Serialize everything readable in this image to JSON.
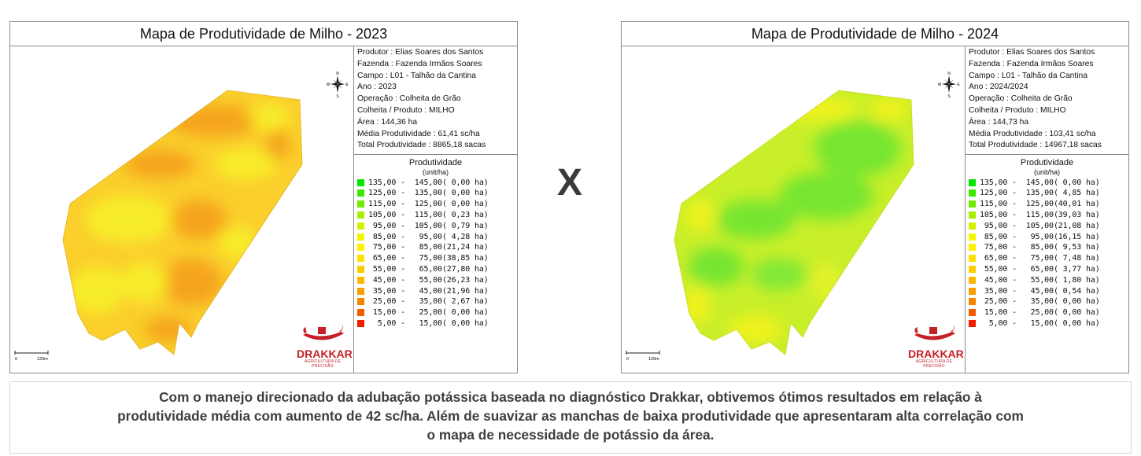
{
  "maps": [
    {
      "title": "Mapa de Produtividade de Milho - 2023",
      "info": [
        "Produtor : Elias Soares dos Santos",
        "Fazenda  : Fazenda Irmãos Soares",
        "Campo  : L01 - Talhão da Cantina",
        "Ano : 2023",
        "Operação  : Colheita de Grão",
        "Colheita / Produto : MILHO",
        "Área : 144,36 ha",
        "Média Produtividade : 61,41 sc/ha",
        "Total Produtividade : 8865,18 sacas"
      ],
      "legend_title": "Produtividade",
      "legend_unit": "(unit/ha)",
      "legend": [
        {
          "range": "135,00 -  145,00",
          "area": "( 0,00 ha)",
          "color": "#00e600"
        },
        {
          "range": "125,00 -  135,00",
          "area": "( 0,00 ha)",
          "color": "#3de800"
        },
        {
          "range": "115,00 -  125,00",
          "area": "( 0,00 ha)",
          "color": "#73eb00"
        },
        {
          "range": "105,00 -  115,00",
          "area": "( 0,23 ha)",
          "color": "#a8ee00"
        },
        {
          "range": " 95,00 -  105,00",
          "area": "( 0,79 ha)",
          "color": "#d4f100"
        },
        {
          "range": " 85,00 -   95,00",
          "area": "( 4,28 ha)",
          "color": "#f2f500"
        },
        {
          "range": " 75,00 -   85,00",
          "area": "(21,24 ha)",
          "color": "#fff200"
        },
        {
          "range": " 65,00 -   75,00",
          "area": "(38,85 ha)",
          "color": "#fde000"
        },
        {
          "range": " 55,00 -   65,00",
          "area": "(27,80 ha)",
          "color": "#fccd00"
        },
        {
          "range": " 45,00 -   55,00",
          "area": "(26,23 ha)",
          "color": "#fbb800"
        },
        {
          "range": " 35,00 -   45,00",
          "area": "(21,96 ha)",
          "color": "#f9a000"
        },
        {
          "range": " 25,00 -   35,00",
          "area": "( 2,67 ha)",
          "color": "#f78500"
        },
        {
          "range": " 15,00 -   25,00",
          "area": "( 0,00 ha)",
          "color": "#f45a00"
        },
        {
          "range": "  5,00 -   15,00",
          "area": "( 0,00 ha)",
          "color": "#f01c00"
        }
      ],
      "scale_start": "0",
      "scale_end": "120m",
      "compass": {
        "n": "N",
        "s": "S",
        "e": "E",
        "w": "W"
      },
      "logo": {
        "name": "DRAKKAR",
        "sub": "AGRICULTURA DE PRECISÃO"
      }
    },
    {
      "title": "Mapa de Produtividade de Milho - 2024",
      "info": [
        "Produtor : Elias Soares dos Santos",
        "Fazenda  : Fazenda Irmãos Soares",
        "Campo  : L01 - Talhão da Cantina",
        "Ano : 2024/2024",
        "Operação  : Colheita de Grão",
        "Colheita / Produto : MILHO",
        "Área : 144,73 ha",
        "Média Produtividade : 103,41 sc/ha",
        "Total Produtividade : 14967,18 sacas"
      ],
      "legend_title": "Produtividade",
      "legend_unit": "(unit/ha)",
      "legend": [
        {
          "range": "135,00 -  145,00",
          "area": "( 0,00 ha)",
          "color": "#00e600"
        },
        {
          "range": "125,00 -  135,00",
          "area": "( 4,85 ha)",
          "color": "#3de800"
        },
        {
          "range": "115,00 -  125,00",
          "area": "(40,01 ha)",
          "color": "#73eb00"
        },
        {
          "range": "105,00 -  115,00",
          "area": "(39,03 ha)",
          "color": "#a8ee00"
        },
        {
          "range": " 95,00 -  105,00",
          "area": "(21,08 ha)",
          "color": "#d4f100"
        },
        {
          "range": " 85,00 -   95,00",
          "area": "(16,15 ha)",
          "color": "#f2f500"
        },
        {
          "range": " 75,00 -   85,00",
          "area": "( 9,53 ha)",
          "color": "#fff200"
        },
        {
          "range": " 65,00 -   75,00",
          "area": "( 7,48 ha)",
          "color": "#fde000"
        },
        {
          "range": " 55,00 -   65,00",
          "area": "( 3,77 ha)",
          "color": "#fccd00"
        },
        {
          "range": " 45,00 -   55,00",
          "area": "( 1,80 ha)",
          "color": "#fbb800"
        },
        {
          "range": " 35,00 -   45,00",
          "area": "( 0,54 ha)",
          "color": "#f9a000"
        },
        {
          "range": " 25,00 -   35,00",
          "area": "( 0,00 ha)",
          "color": "#f78500"
        },
        {
          "range": " 15,00 -   25,00",
          "area": "( 0,00 ha)",
          "color": "#f45a00"
        },
        {
          "range": "  5,00 -   15,00",
          "area": "( 0,00 ha)",
          "color": "#f01c00"
        }
      ],
      "scale_start": "0",
      "scale_end": "120m",
      "compass": {
        "n": "N",
        "s": "S",
        "e": "E",
        "w": "W"
      },
      "logo": {
        "name": "DRAKKAR",
        "sub": "AGRICULTURA DE PRECISÃO"
      }
    }
  ],
  "separator": "X",
  "caption": [
    "Com o manejo direcionado da adubação potássica baseada no diagnóstico Drakkar, obtivemos ótimos resultados em relação à",
    "produtividade média com aumento de 42 sc/ha. Além de suavizar as manchas de baixa produtividade que apresentaram alta correlação com",
    "o mapa de necessidade de potássio da área."
  ],
  "colors": {
    "field_2023_base": "#fbcf2c",
    "field_2023_low": "#f4a21b",
    "field_2023_high": "#f7ee2a",
    "field_2024_base": "#c8ef2a",
    "field_2024_high": "#72e532",
    "field_2024_low": "#f1f21f",
    "logo_red": "#c42026"
  }
}
